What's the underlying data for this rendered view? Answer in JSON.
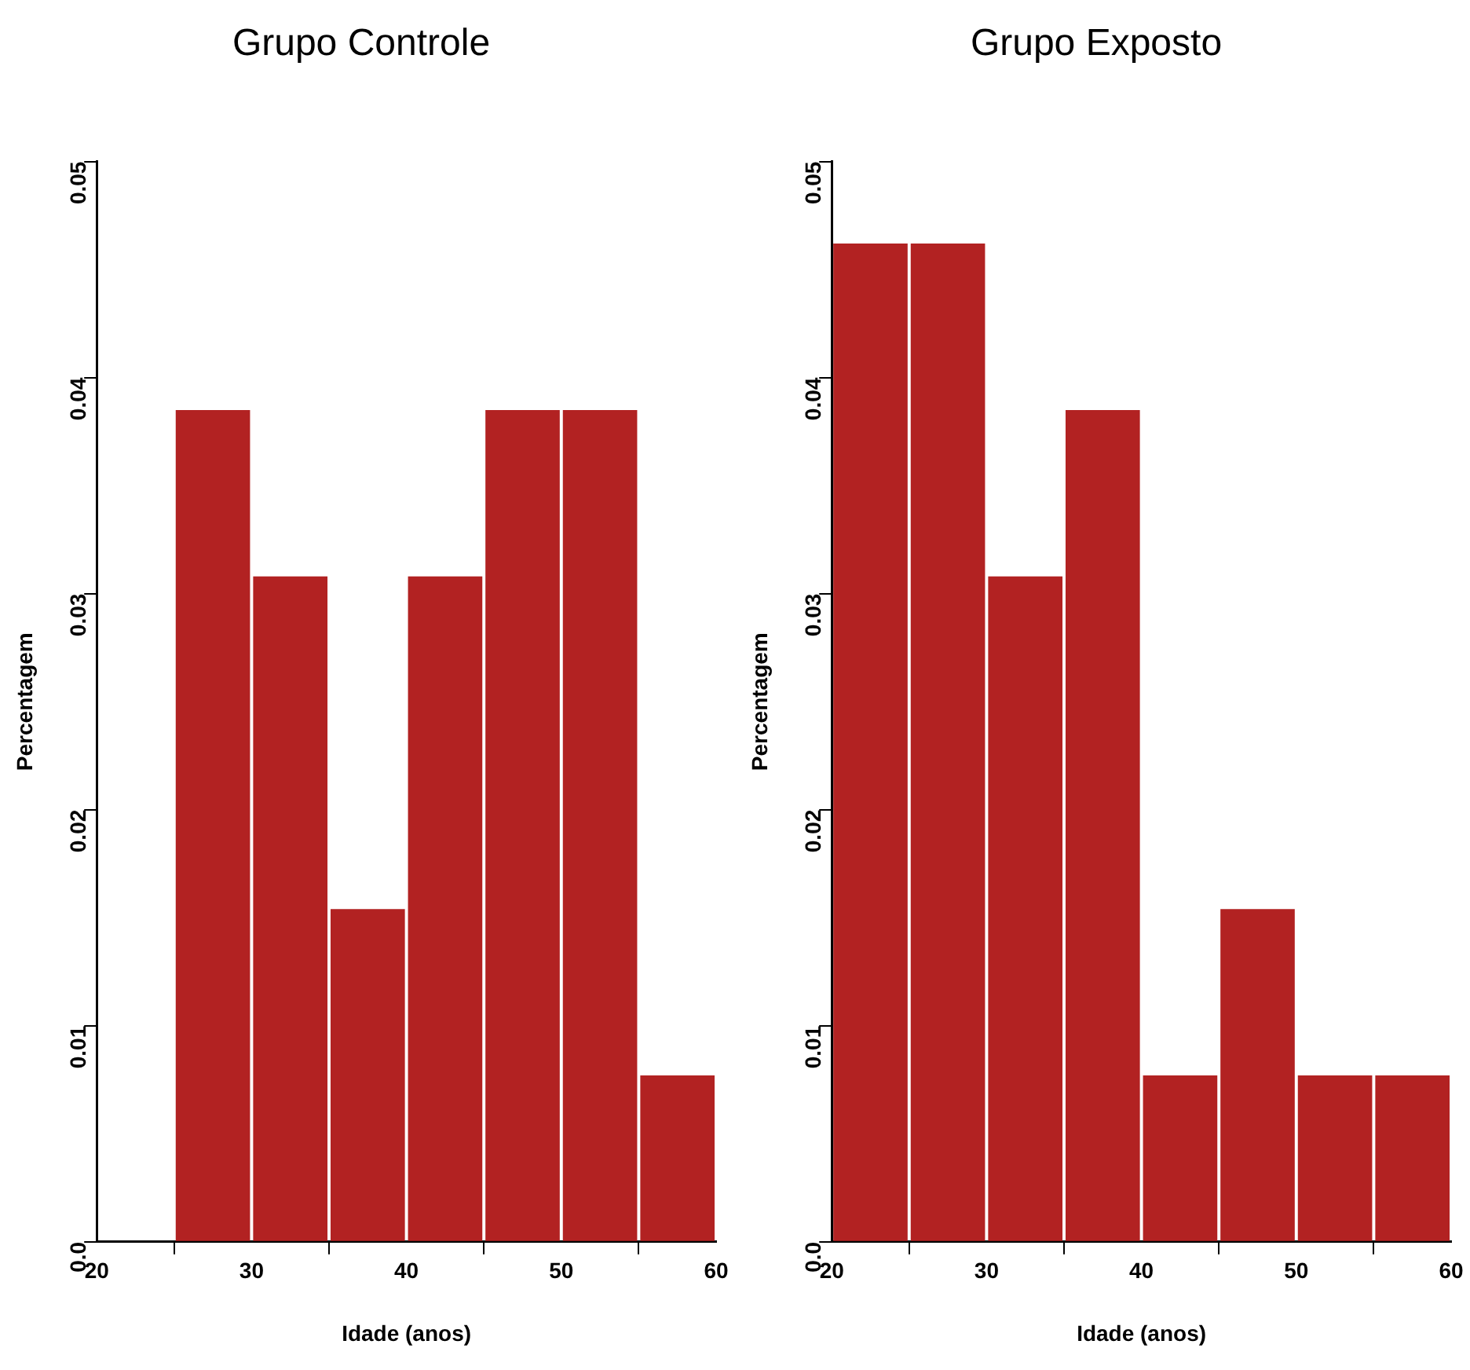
{
  "chart_data": [
    {
      "type": "histogram",
      "title": "Grupo Controle",
      "xlabel": "Idade (anos)",
      "ylabel": "Percentagem",
      "color": "#b22222",
      "bins": [
        25,
        30,
        35,
        40,
        45,
        50,
        55,
        60
      ],
      "values": [
        0.0385,
        0.0308,
        0.0154,
        0.0308,
        0.0385,
        0.0385,
        0.0077
      ],
      "xlim": [
        20,
        60
      ],
      "xticks": [
        20,
        30,
        40,
        50,
        60
      ],
      "ylim": [
        0,
        0.05
      ],
      "yticks": [
        {
          "value": 0,
          "label": "0.0"
        },
        0.01,
        0.02,
        0.03,
        0.04,
        0.05
      ],
      "grid": false,
      "legend": false
    },
    {
      "type": "histogram",
      "title": "Grupo Exposto",
      "xlabel": "Idade (anos)",
      "ylabel": "Percentagem",
      "color": "#b22222",
      "bins": [
        20,
        25,
        30,
        35,
        40,
        45,
        50,
        55,
        60
      ],
      "values": [
        0.0462,
        0.0462,
        0.0308,
        0.0385,
        0.0077,
        0.0154,
        0.0077,
        0.0077
      ],
      "xlim": [
        20,
        60
      ],
      "xticks": [
        20,
        30,
        40,
        50,
        60
      ],
      "ylim": [
        0,
        0.05
      ],
      "yticks": [
        {
          "value": 0,
          "label": "0.0"
        },
        0.01,
        0.02,
        0.03,
        0.04,
        0.05
      ],
      "grid": false,
      "legend": false
    }
  ]
}
